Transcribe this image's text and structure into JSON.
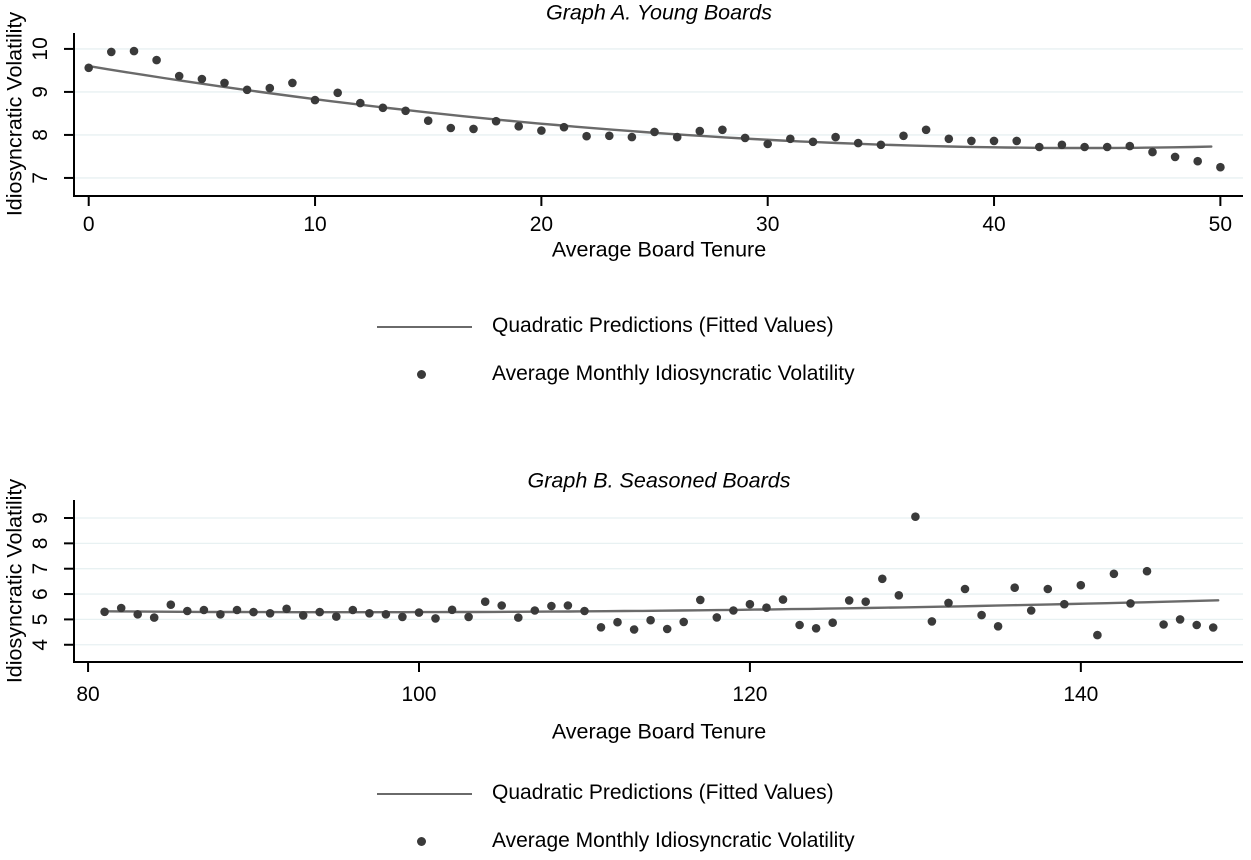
{
  "styles": {
    "background": "#ffffff",
    "grid_color": "#e8f1f2",
    "axis_color": "#000000",
    "dot_color": "#3a3a3a",
    "fit_line_color": "#6a6a6a",
    "text_color": "#000000"
  },
  "chart_data": [
    {
      "type": "scatter",
      "title": "Graph A. Young Boards",
      "xlabel": "Average Board Tenure",
      "ylabel": "Idiosyncratic Volatility",
      "x_ticks": [
        0,
        10,
        20,
        30,
        40,
        50
      ],
      "y_ticks": [
        7,
        8,
        9,
        10
      ],
      "xlim": [
        -0.65,
        51.0
      ],
      "ylim": [
        6.58,
        10.37
      ],
      "grid": true,
      "legend_position": "below",
      "legend": [
        "Quadratic Predictions (Fitted Values)",
        "Average Monthly Idiosyncratic Volatility"
      ],
      "series": [
        {
          "name": "Quadratic Predictions (Fitted Values)",
          "type": "line",
          "quadratic": {
            "a": 9.6,
            "b": -0.0867,
            "c": 0.000987
          },
          "x_start": 0,
          "x_end": 49.6
        },
        {
          "name": "Average Monthly Idiosyncratic Volatility",
          "type": "scatter",
          "x": [
            0,
            1,
            2,
            3,
            4,
            5,
            6,
            7,
            8,
            9,
            10,
            11,
            12,
            13,
            14,
            15,
            16,
            17,
            18,
            19,
            20,
            21,
            22,
            23,
            24,
            25,
            26,
            27,
            28,
            29,
            30,
            31,
            32,
            33,
            34,
            35,
            36,
            37,
            38,
            39,
            40,
            41,
            42,
            43,
            44,
            45,
            46,
            47,
            48,
            49,
            50
          ],
          "y": [
            9.56,
            9.93,
            9.95,
            9.74,
            9.37,
            9.3,
            9.21,
            9.05,
            9.09,
            9.21,
            8.81,
            8.98,
            8.74,
            8.63,
            8.56,
            8.33,
            8.16,
            8.14,
            8.32,
            8.2,
            8.1,
            8.18,
            7.97,
            7.98,
            7.95,
            8.07,
            7.95,
            8.09,
            8.12,
            7.93,
            7.79,
            7.91,
            7.84,
            7.95,
            7.81,
            7.77,
            7.98,
            8.12,
            7.91,
            7.86,
            7.86,
            7.86,
            7.72,
            7.77,
            7.72,
            7.72,
            7.74,
            7.6,
            7.49,
            7.39,
            7.25
          ]
        }
      ]
    },
    {
      "type": "scatter",
      "title": "Graph B. Seasoned Boards",
      "xlabel": "Average Board Tenure",
      "ylabel": "Idiosyncratic Volatility",
      "x_ticks": [
        80,
        100,
        120,
        140
      ],
      "y_ticks": [
        4,
        5,
        6,
        7,
        8,
        9
      ],
      "xlim": [
        79.15,
        149.8
      ],
      "ylim": [
        3.32,
        9.71
      ],
      "grid": true,
      "legend_position": "below",
      "legend": [
        "Quadratic Predictions (Fitted Values)",
        "Average Monthly Idiosyncratic Volatility"
      ],
      "series": [
        {
          "name": "Quadratic Predictions (Fitted Values)",
          "type": "line",
          "quadratic": {
            "a": 6.8404,
            "b": -0.03254,
            "c": 0.00017
          },
          "x_start": 81,
          "x_end": 148.3
        },
        {
          "name": "Average Monthly Idiosyncratic Volatility",
          "type": "scatter",
          "x": [
            81,
            82,
            83,
            84,
            85,
            86,
            87,
            88,
            89,
            90,
            91,
            92,
            93,
            94,
            95,
            96,
            97,
            98,
            99,
            100,
            101,
            102,
            103,
            104,
            105,
            106,
            107,
            108,
            109,
            110,
            111,
            112,
            113,
            114,
            115,
            116,
            117,
            118,
            119,
            120,
            121,
            122,
            123,
            124,
            125,
            126,
            127,
            128,
            129,
            130,
            131,
            132,
            133,
            134,
            135,
            136,
            137,
            138,
            139,
            140,
            141,
            142,
            143,
            144,
            145,
            146,
            147,
            148
          ],
          "y": [
            5.3,
            5.45,
            5.2,
            5.07,
            5.58,
            5.33,
            5.37,
            5.2,
            5.37,
            5.29,
            5.24,
            5.42,
            5.16,
            5.29,
            5.11,
            5.37,
            5.24,
            5.2,
            5.1,
            5.27,
            5.04,
            5.38,
            5.1,
            5.7,
            5.55,
            5.07,
            5.35,
            5.53,
            5.55,
            5.33,
            4.69,
            4.89,
            4.6,
            4.97,
            4.62,
            4.9,
            5.77,
            5.08,
            5.35,
            5.6,
            5.46,
            5.78,
            4.78,
            4.65,
            4.87,
            5.75,
            5.7,
            6.6,
            5.95,
            9.05,
            4.92,
            5.65,
            6.2,
            5.17,
            4.73,
            6.25,
            5.35,
            6.2,
            5.6,
            6.35,
            4.38,
            6.8,
            5.63,
            6.9,
            4.8,
            5.0,
            4.78,
            4.68
          ]
        }
      ]
    }
  ]
}
